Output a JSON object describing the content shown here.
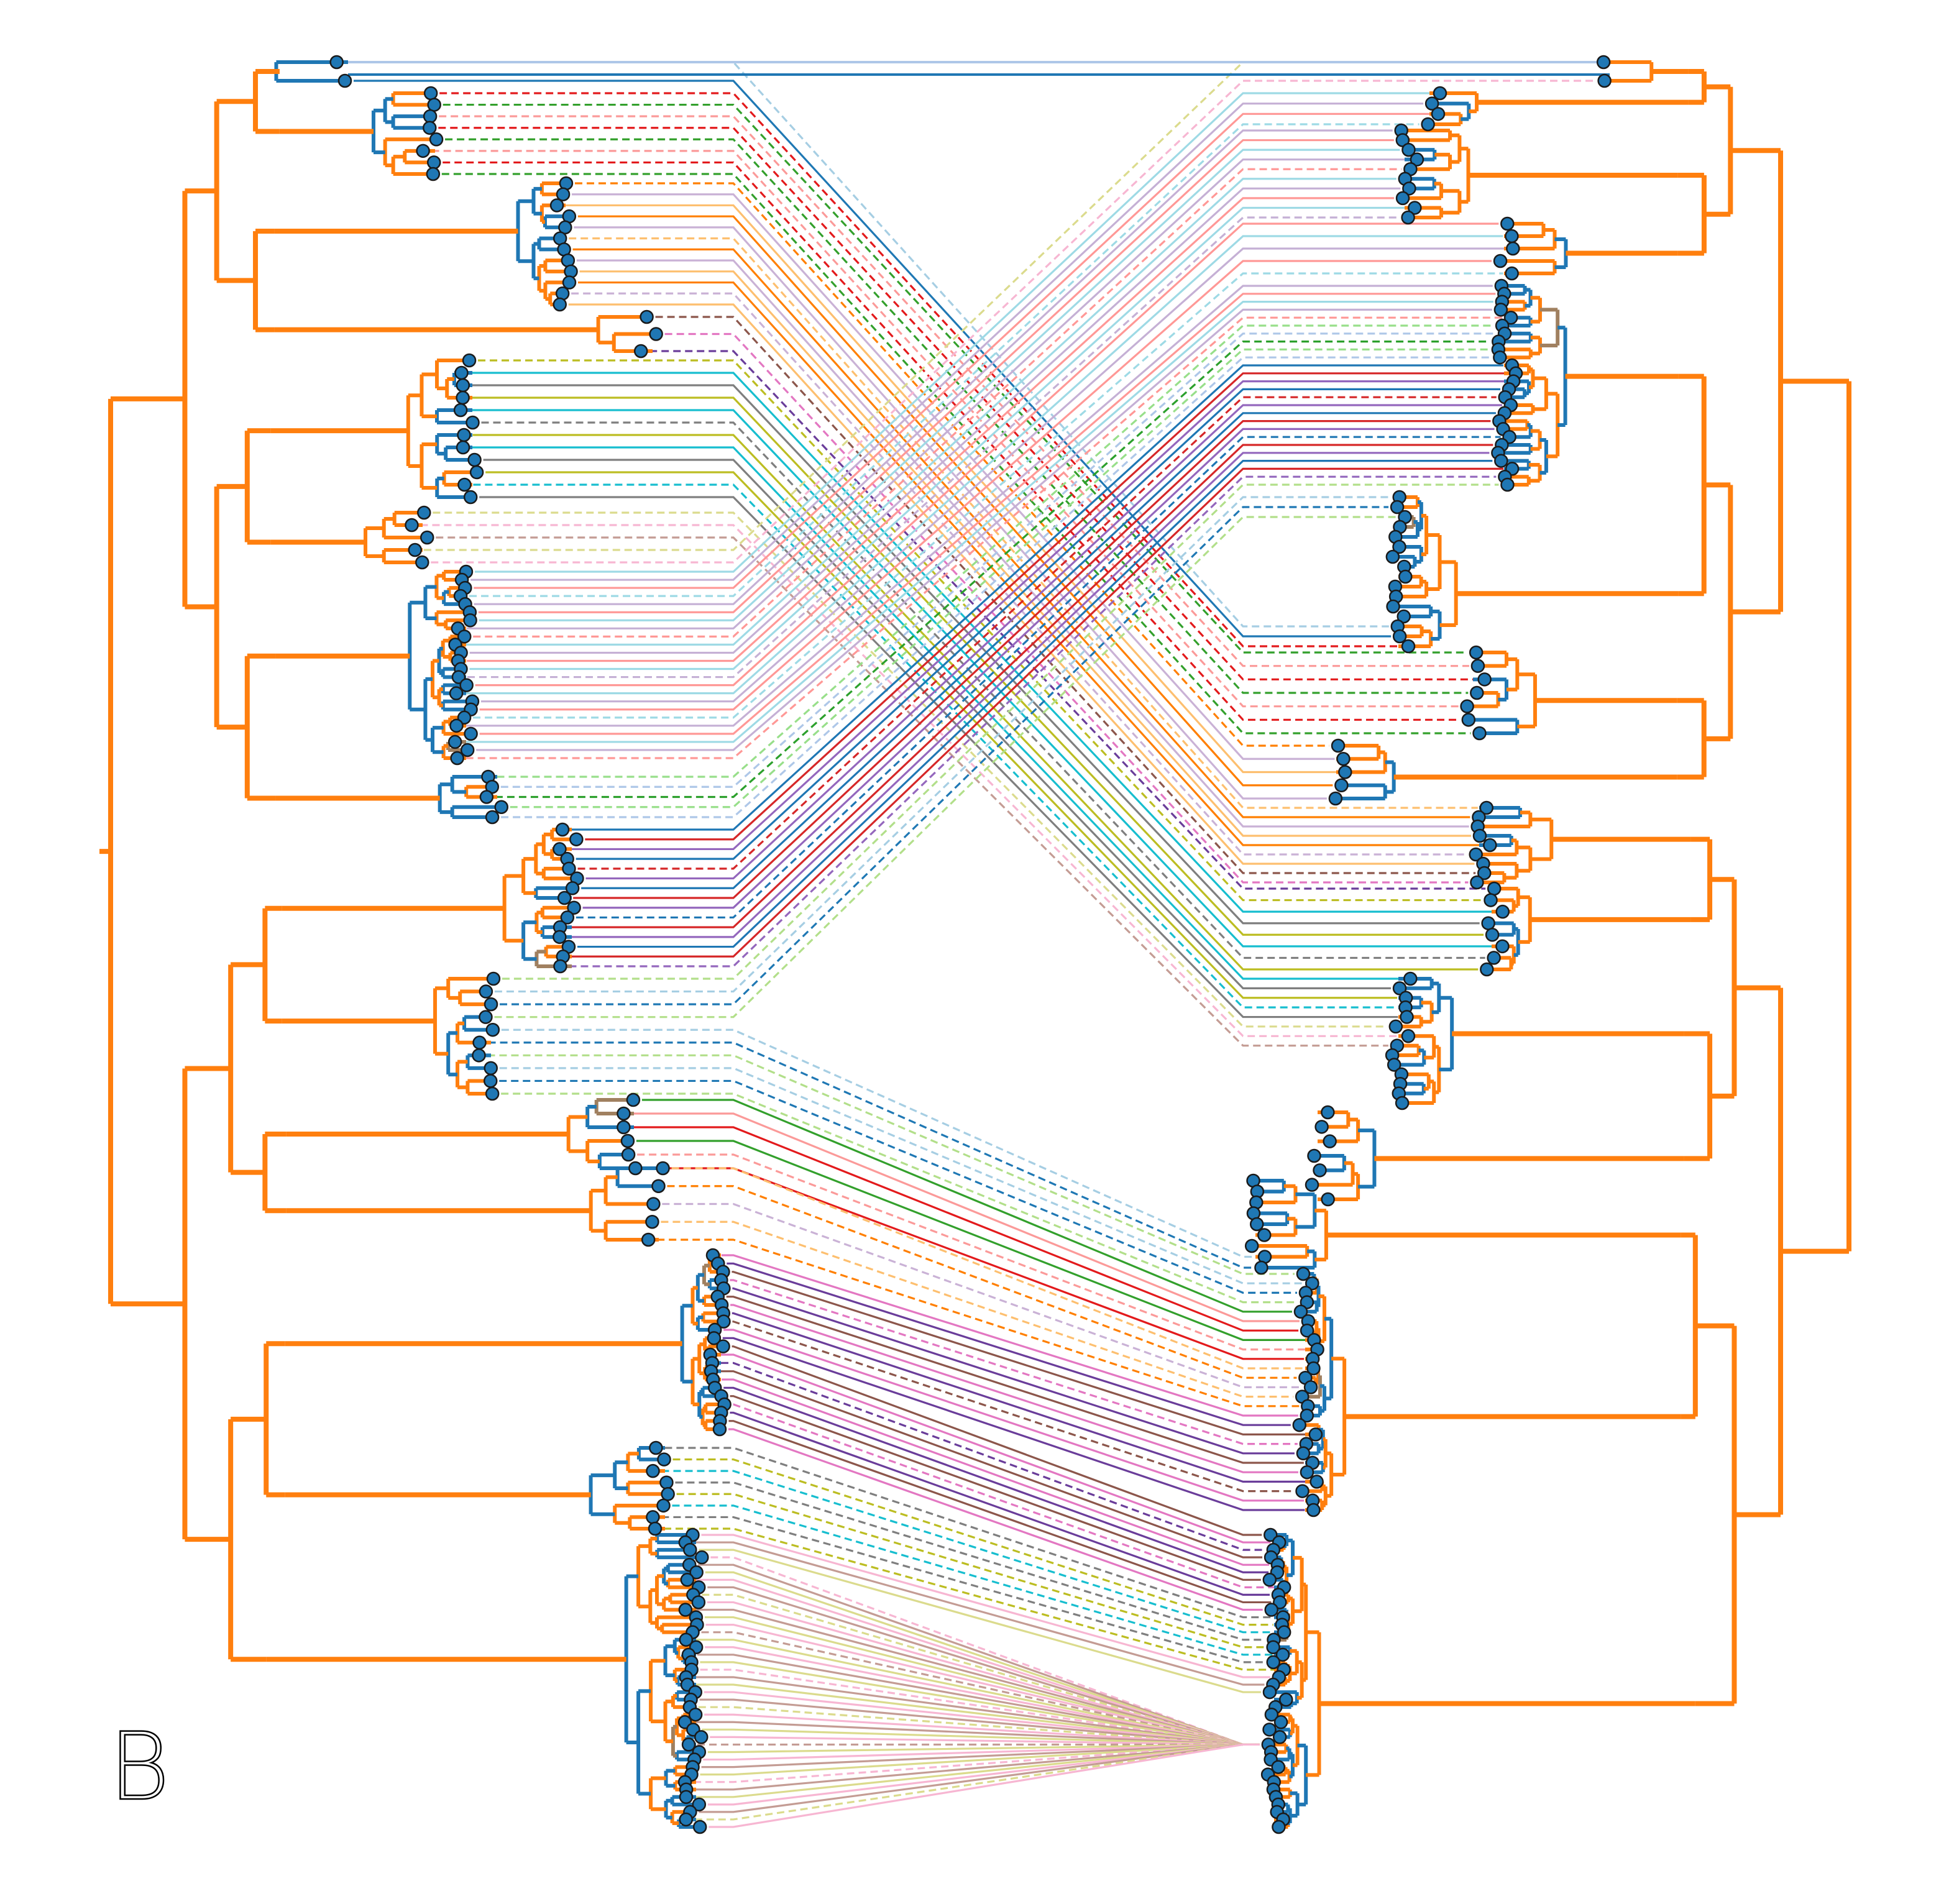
{
  "figure": {
    "panel_label": "B",
    "type": "tanglegram",
    "colors": {
      "tree_branch": "#ff7f0e",
      "tree_branch_alt": "#1f77b4",
      "tree_branch_grey": "#a08060",
      "tip_marker_fill": "#1f77b4",
      "tip_marker_stroke": "#1a1a1a"
    },
    "connector_palette": [
      "#a6cee3",
      "#1f78b4",
      "#b2df8a",
      "#33a02c",
      "#fb9a99",
      "#e31a1c",
      "#fdbf6f",
      "#ff7f00",
      "#cab2d6",
      "#6a3d9a",
      "#8c564b",
      "#e377c2",
      "#7f7f7f",
      "#bcbd22",
      "#17becf",
      "#c49c94",
      "#dbdb8d",
      "#f7b6d2",
      "#9edae5",
      "#c5b0d5",
      "#ff9896",
      "#98df8a",
      "#aec7e8",
      "#2ca02c",
      "#d62728",
      "#9467bd",
      "#1f77b4"
    ]
  }
}
